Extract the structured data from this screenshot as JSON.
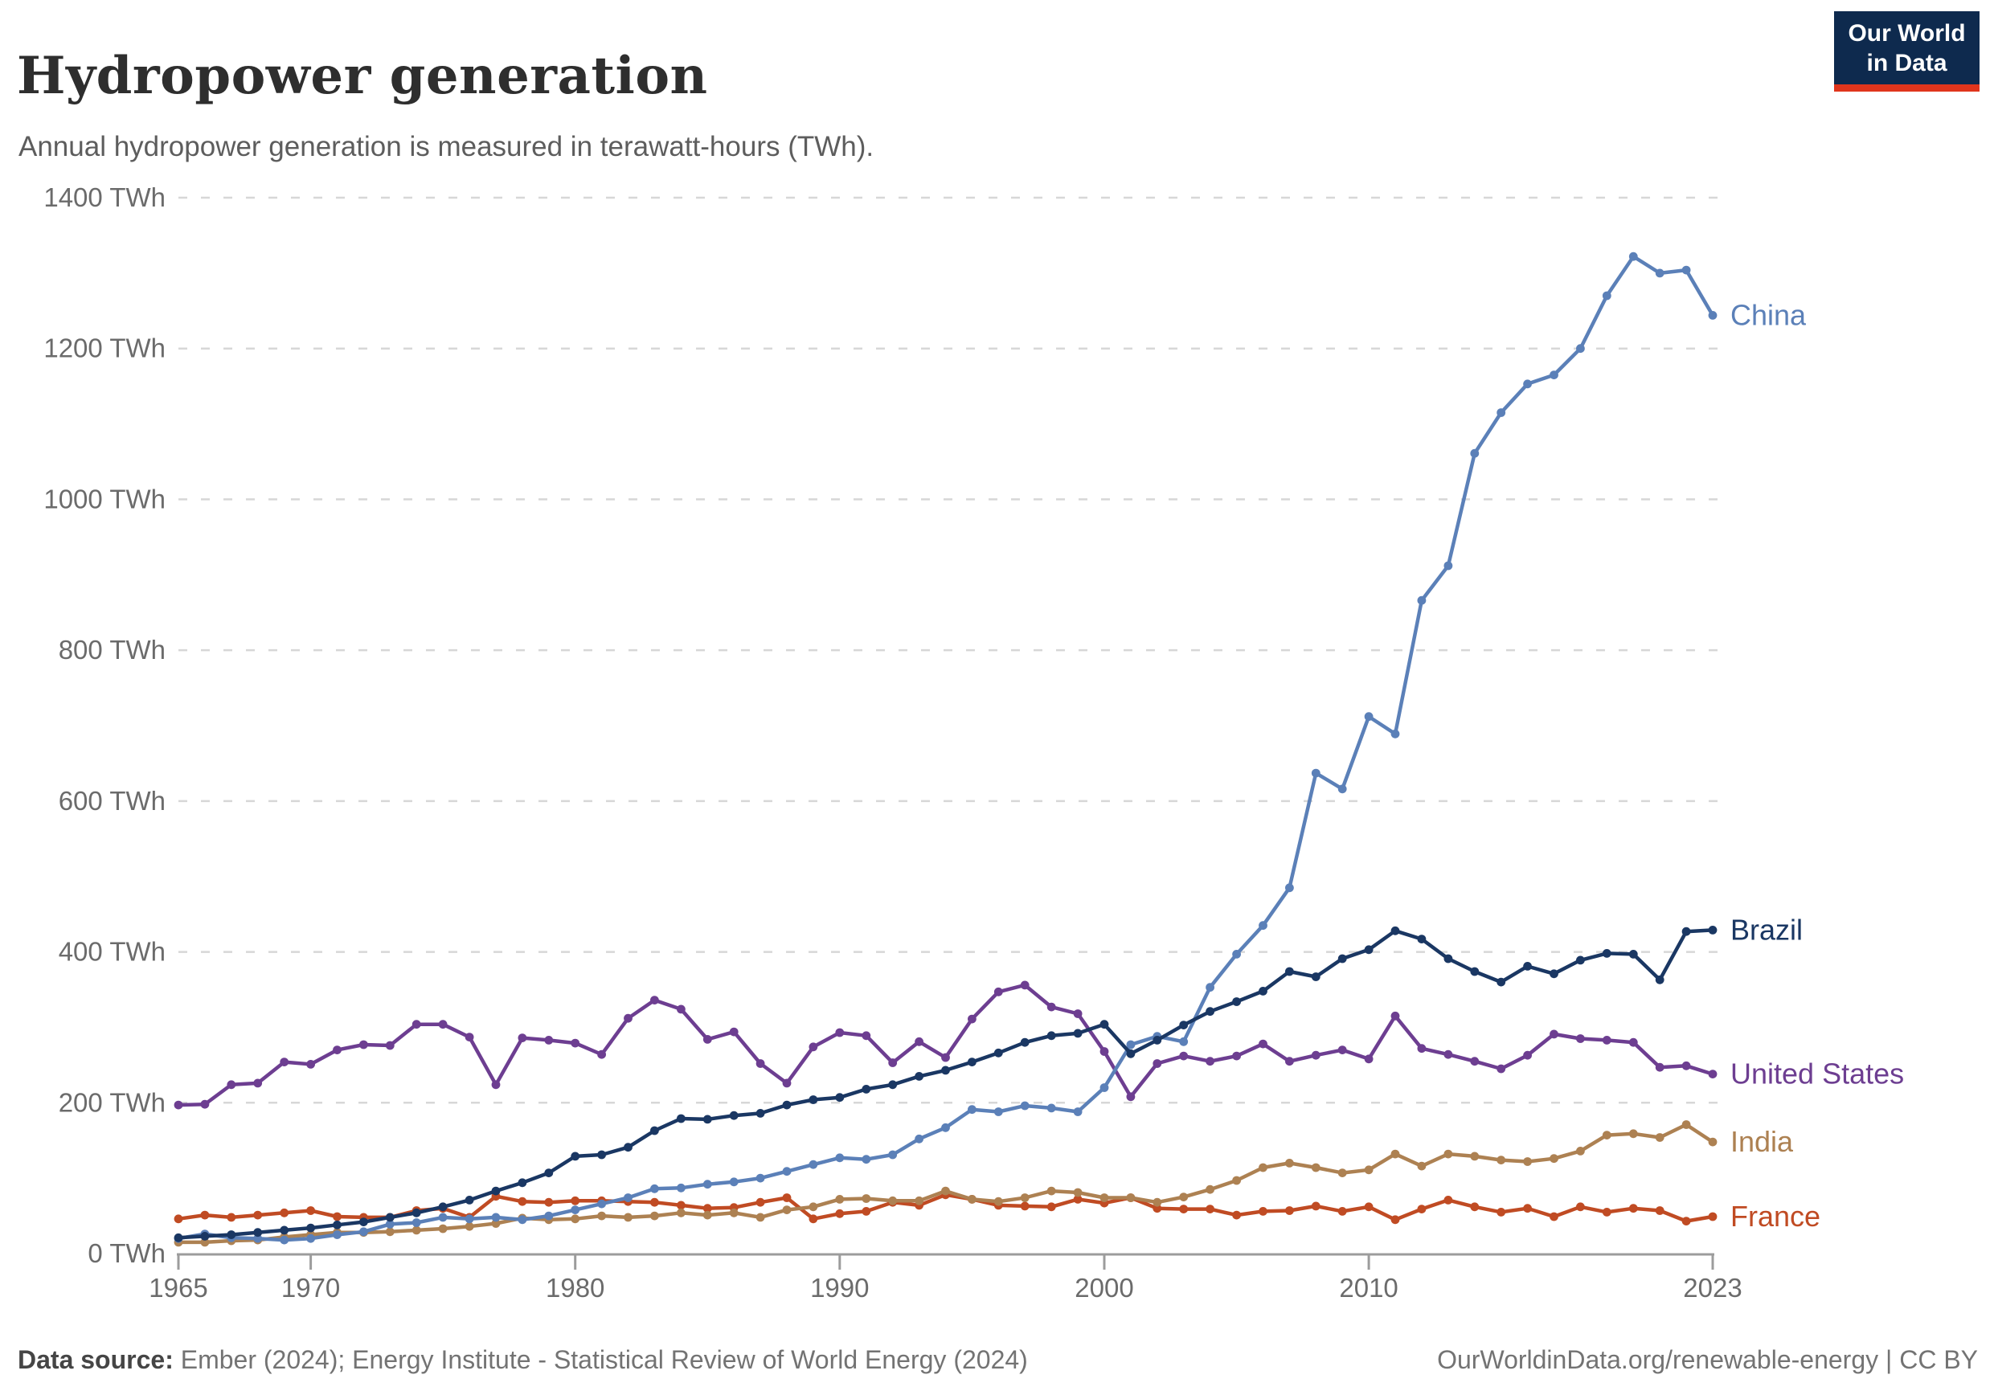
{
  "header": {
    "title": "Hydropower generation",
    "subtitle": "Annual hydropower generation is measured in terawatt-hours (TWh)."
  },
  "logo": {
    "line1": "Our World",
    "line2": "in Data",
    "bg": "#0e2a4e",
    "bar": "#e0351c"
  },
  "footer": {
    "source_label": "Data source:",
    "source_text": " Ember (2024); Energy Institute - Statistical Review of World Energy (2024)",
    "citation": "OurWorldinData.org/renewable-energy | CC BY"
  },
  "colors": {
    "axis": "#9c9c9c",
    "grid": "#d7d7d7",
    "tick_label": "#6b6b6b"
  },
  "chart_data": {
    "type": "line",
    "title": "Hydropower generation",
    "subtitle": "Annual hydropower generation is measured in terawatt-hours (TWh).",
    "unit": "TWh",
    "xlim": [
      1965,
      2023
    ],
    "ylim": [
      0,
      1400
    ],
    "x_ticks": [
      1965,
      1970,
      1980,
      1990,
      2000,
      2010,
      2023
    ],
    "y_ticks": [
      0,
      200,
      400,
      600,
      800,
      1000,
      1200,
      1400
    ],
    "y_tick_suffix": " TWh",
    "grid": "horizontal-dashed",
    "legend_position": "end-of-line-labels",
    "x": [
      1965,
      1966,
      1967,
      1968,
      1969,
      1970,
      1971,
      1972,
      1973,
      1974,
      1975,
      1976,
      1977,
      1978,
      1979,
      1980,
      1981,
      1982,
      1983,
      1984,
      1985,
      1986,
      1987,
      1988,
      1989,
      1990,
      1991,
      1992,
      1993,
      1994,
      1995,
      1996,
      1997,
      1998,
      1999,
      2000,
      2001,
      2002,
      2003,
      2004,
      2005,
      2006,
      2007,
      2008,
      2009,
      2010,
      2011,
      2012,
      2013,
      2014,
      2015,
      2016,
      2017,
      2018,
      2019,
      2020,
      2021,
      2022,
      2023
    ],
    "series": [
      {
        "name": "China",
        "color": "#5b80b8",
        "values": [
          20,
          26,
          21,
          20,
          18,
          20,
          25,
          29,
          39,
          41,
          48,
          46,
          48,
          45,
          50,
          58,
          66,
          74,
          86,
          87,
          92,
          95,
          100,
          109,
          118,
          127,
          125,
          131,
          152,
          167,
          191,
          188,
          196,
          193,
          188,
          220,
          277,
          288,
          281,
          353,
          397,
          435,
          485,
          637,
          616,
          712,
          689,
          866,
          912,
          1061,
          1115,
          1153,
          1165,
          1200,
          1270,
          1322,
          1300,
          1304,
          1244
        ]
      },
      {
        "name": "Brazil",
        "color": "#1a3763",
        "values": [
          21,
          23,
          25,
          28,
          31,
          34,
          38,
          42,
          48,
          54,
          62,
          71,
          83,
          94,
          107,
          129,
          131,
          141,
          163,
          179,
          178,
          183,
          186,
          197,
          204,
          207,
          218,
          224,
          235,
          243,
          254,
          266,
          280,
          289,
          292,
          304,
          265,
          283,
          303,
          321,
          334,
          348,
          374,
          367,
          391,
          403,
          428,
          417,
          391,
          374,
          360,
          381,
          371,
          389,
          398,
          397,
          363,
          427,
          429
        ]
      },
      {
        "name": "United States",
        "color": "#6d3e91",
        "values": [
          197,
          198,
          224,
          226,
          254,
          251,
          270,
          277,
          276,
          304,
          304,
          287,
          224,
          286,
          283,
          279,
          264,
          312,
          336,
          324,
          284,
          294,
          252,
          226,
          274,
          293,
          289,
          253,
          281,
          260,
          311,
          347,
          356,
          327,
          318,
          268,
          208,
          252,
          262,
          255,
          262,
          278,
          255,
          263,
          270,
          258,
          315,
          272,
          264,
          255,
          245,
          263,
          291,
          285,
          283,
          280,
          247,
          249,
          238
        ]
      },
      {
        "name": "India",
        "color": "#ad8152",
        "values": [
          15,
          15,
          17,
          18,
          22,
          25,
          28,
          28,
          29,
          31,
          33,
          36,
          40,
          47,
          45,
          46,
          50,
          48,
          50,
          54,
          51,
          54,
          48,
          58,
          62,
          72,
          73,
          70,
          70,
          83,
          72,
          69,
          74,
          83,
          81,
          74,
          74,
          68,
          75,
          85,
          97,
          114,
          120,
          114,
          107,
          111,
          132,
          116,
          132,
          129,
          124,
          122,
          126,
          136,
          157,
          159,
          154,
          171,
          148
        ]
      },
      {
        "name": "France",
        "color": "#c04b23",
        "values": [
          46,
          51,
          48,
          51,
          54,
          57,
          49,
          48,
          48,
          57,
          60,
          48,
          76,
          69,
          68,
          70,
          70,
          69,
          68,
          64,
          60,
          61,
          68,
          74,
          46,
          53,
          56,
          68,
          64,
          78,
          72,
          64,
          63,
          62,
          72,
          67,
          74,
          60,
          59,
          59,
          51,
          56,
          57,
          63,
          56,
          62,
          45,
          59,
          71,
          62,
          55,
          60,
          49,
          62,
          55,
          60,
          57,
          43,
          49
        ]
      }
    ]
  }
}
